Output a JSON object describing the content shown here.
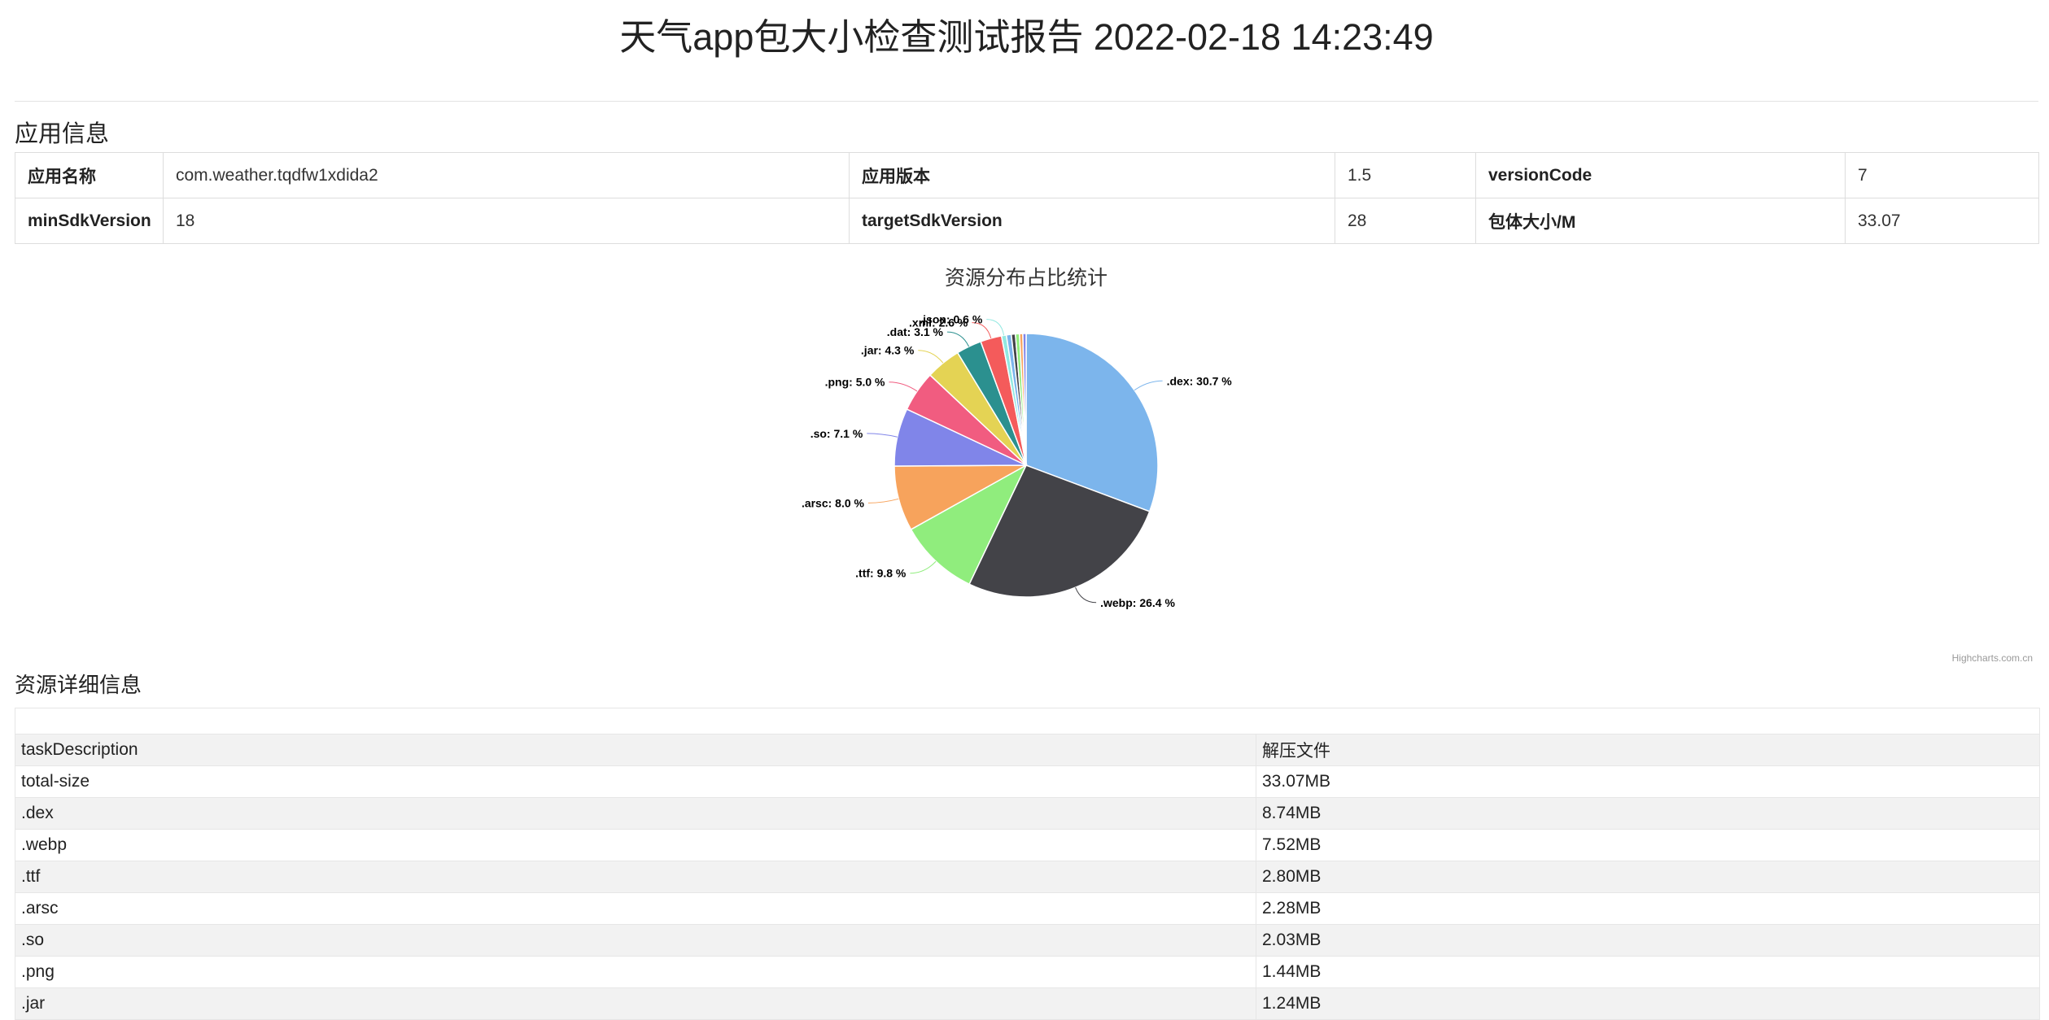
{
  "report": {
    "title": "天气app包大小检查测试报告 2022-02-18 14:23:49"
  },
  "app_info": {
    "heading": "应用信息",
    "rows": [
      [
        {
          "key": "应用名称",
          "value": "com.weather.tqdfw1xdida2"
        },
        {
          "key": "应用版本",
          "value": "1.5"
        },
        {
          "key": "versionCode",
          "value": "7"
        }
      ],
      [
        {
          "key": "minSdkVersion",
          "value": "18"
        },
        {
          "key": "targetSdkVersion",
          "value": "28"
        },
        {
          "key": "包体大小/M",
          "value": "33.07"
        }
      ]
    ]
  },
  "chart_data": {
    "type": "pie",
    "title": "资源分布占比统计",
    "credit": "Highcharts.com.cn",
    "slices": [
      {
        "name": ".dex",
        "value": 30.7,
        "color": "#7cb5ec",
        "label": ".dex: 30.7 %"
      },
      {
        "name": ".webp",
        "value": 26.4,
        "color": "#434348",
        "label": ".webp: 26.4 %"
      },
      {
        "name": ".ttf",
        "value": 9.8,
        "color": "#90ed7d",
        "label": ".ttf: 9.8 %"
      },
      {
        "name": ".arsc",
        "value": 8.0,
        "color": "#f7a35c",
        "label": ".arsc: 8.0 %"
      },
      {
        "name": ".so",
        "value": 7.1,
        "color": "#8085e9",
        "label": ".so: 7.1 %"
      },
      {
        "name": ".png",
        "value": 5.0,
        "color": "#f15c80",
        "label": ".png: 5.0 %"
      },
      {
        "name": ".jar",
        "value": 4.3,
        "color": "#e4d354",
        "label": ".jar: 4.3 %"
      },
      {
        "name": ".dat",
        "value": 3.1,
        "color": "#2b908f",
        "label": ".dat: 3.1 %"
      },
      {
        "name": ".xml",
        "value": 2.6,
        "color": "#f45b5b",
        "label": ".xml: 2.6 %"
      },
      {
        "name": ".json",
        "value": 0.6,
        "color": "#91e8e1",
        "label": ".json: 0.6 %"
      },
      {
        "name": "",
        "value": 0.6,
        "color": "#7cb5ec",
        "label": ""
      },
      {
        "name": "",
        "value": 0.5,
        "color": "#434348",
        "label": ""
      },
      {
        "name": "",
        "value": 0.5,
        "color": "#90ed7d",
        "label": ""
      },
      {
        "name": "",
        "value": 0.4,
        "color": "#f7a35c",
        "label": ""
      },
      {
        "name": "",
        "value": 0.4,
        "color": "#8085e9",
        "label": ""
      }
    ]
  },
  "details": {
    "heading": "资源详细信息",
    "rows": [
      [
        "taskDescription",
        "解压文件"
      ],
      [
        "total-size",
        "33.07MB"
      ],
      [
        ".dex",
        "8.74MB"
      ],
      [
        ".webp",
        "7.52MB"
      ],
      [
        ".ttf",
        "2.80MB"
      ],
      [
        ".arsc",
        "2.28MB"
      ],
      [
        ".so",
        "2.03MB"
      ],
      [
        ".png",
        "1.44MB"
      ],
      [
        ".jar",
        "1.24MB"
      ]
    ]
  }
}
